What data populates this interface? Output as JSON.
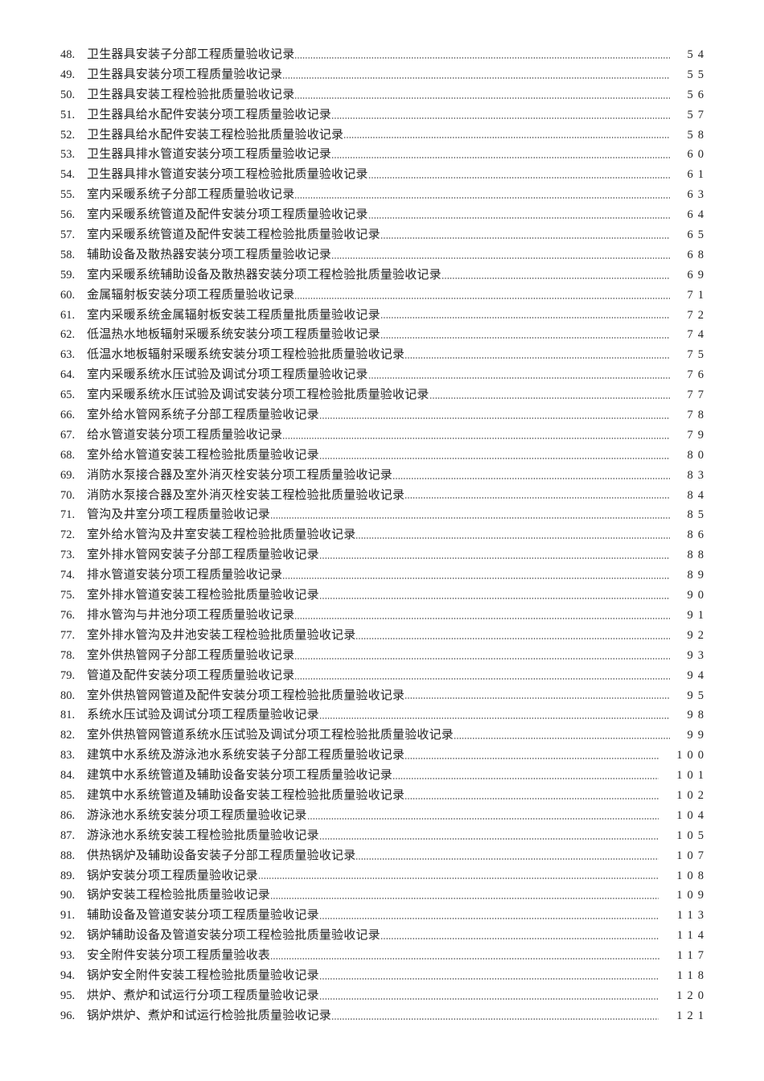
{
  "toc": {
    "entries": [
      {
        "num": "48.",
        "title": "卫生器具安装子分部工程质量验收记录",
        "page": "54"
      },
      {
        "num": "49.",
        "title": "卫生器具安装分项工程质量验收记录",
        "page": "55"
      },
      {
        "num": "50.",
        "title": "卫生器具安装工程检验批质量验收记录",
        "page": "56"
      },
      {
        "num": "51.",
        "title": "卫生器具给水配件安装分项工程质量验收记录",
        "page": "57"
      },
      {
        "num": "52.",
        "title": "卫生器具给水配件安装工程检验批质量验收记录",
        "page": "58"
      },
      {
        "num": "53.",
        "title": "卫生器具排水管道安装分项工程质量验收记录",
        "page": "60"
      },
      {
        "num": "54.",
        "title": "卫生器具排水管道安装分项工程检验批质量验收记录",
        "page": "61"
      },
      {
        "num": "55.",
        "title": "室内采暖系统子分部工程质量验收记录",
        "page": "63"
      },
      {
        "num": "56.",
        "title": "室内采暖系统管道及配件安装分项工程质量验收记录",
        "page": "64"
      },
      {
        "num": "57.",
        "title": "室内采暖系统管道及配件安装工程检验批质量验收记录",
        "page": "65"
      },
      {
        "num": "58.",
        "title": "辅助设备及散热器安装分项工程质量验收记录",
        "page": "68"
      },
      {
        "num": "59.",
        "title": "室内采暖系统辅助设备及散热器安装分项工程检验批质量验收记录",
        "page": "69"
      },
      {
        "num": "60.",
        "title": "金属辐射板安装分项工程质量验收记录",
        "page": "71"
      },
      {
        "num": "61.",
        "title": "室内采暖系统金属辐射板安装工程质量批质量验收记录",
        "page": "72"
      },
      {
        "num": "62.",
        "title": "低温热水地板辐射采暖系统安装分项工程质量验收记录",
        "page": "74"
      },
      {
        "num": "63.",
        "title": "低温水地板辐射采暖系统安装分项工程检验批质量验收记录",
        "page": "75"
      },
      {
        "num": "64.",
        "title": "室内采暖系统水压试验及调试分项工程质量验收记录",
        "page": "76"
      },
      {
        "num": "65.",
        "title": "室内采暖系统水压试验及调试安装分项工程检验批质量验收记录",
        "page": "77"
      },
      {
        "num": "66.",
        "title": "室外给水管网系统子分部工程质量验收记录",
        "page": "78"
      },
      {
        "num": "67.",
        "title": "给水管道安装分项工程质量验收记录",
        "page": "79"
      },
      {
        "num": "68.",
        "title": "室外给水管道安装工程检验批质量验收记录",
        "page": "80"
      },
      {
        "num": "69.",
        "title": "消防水泵接合器及室外消灭栓安装分项工程质量验收记录",
        "page": "83"
      },
      {
        "num": "70.",
        "title": "消防水泵接合器及室外消灭栓安装工程检验批质量验收记录",
        "page": "84"
      },
      {
        "num": "71.",
        "title": "管沟及井室分项工程质量验收记录",
        "page": "85"
      },
      {
        "num": "72.",
        "title": "室外给水管沟及井室安装工程检验批质量验收记录",
        "page": "86"
      },
      {
        "num": "73.",
        "title": "室外排水管网安装子分部工程质量验收记录",
        "page": "88"
      },
      {
        "num": "74.",
        "title": "排水管道安装分项工程质量验收记录",
        "page": "89"
      },
      {
        "num": "75.",
        "title": "室外排水管道安装工程检验批质量验收记录",
        "page": "90"
      },
      {
        "num": "76.",
        "title": "排水管沟与井池分项工程质量验收记录",
        "page": "91"
      },
      {
        "num": "77.",
        "title": "室外排水管沟及井池安装工程检验批质量验收记录",
        "page": "92"
      },
      {
        "num": "78.",
        "title": "室外供热管网子分部工程质量验收记录",
        "page": "93"
      },
      {
        "num": "79.",
        "title": "管道及配件安装分项工程质量验收记录",
        "page": "94"
      },
      {
        "num": "80.",
        "title": "室外供热管网管道及配件安装分项工程检验批质量验收记录",
        "page": "95"
      },
      {
        "num": "81.",
        "title": "系统水压试验及调试分项工程质量验收记录",
        "page": "98"
      },
      {
        "num": "82.",
        "title": "室外供热管网管道系统水压试验及调试分项工程检验批质量验收记录",
        "page": "99"
      },
      {
        "num": "83.",
        "title": "建筑中水系统及游泳池水系统安装子分部工程质量验收记录",
        "page": "100"
      },
      {
        "num": "84.",
        "title": "建筑中水系统管道及辅助设备安装分项工程质量验收记录",
        "page": "101"
      },
      {
        "num": "85.",
        "title": "建筑中水系统管道及辅助设备安装工程检验批质量验收记录",
        "page": "102"
      },
      {
        "num": "86.",
        "title": "游泳池水系统安装分项工程质量验收记录",
        "page": "104"
      },
      {
        "num": "87.",
        "title": "游泳池水系统安装工程检验批质量验收记录",
        "page": "105"
      },
      {
        "num": "88.",
        "title": "供热锅炉及辅助设备安装子分部工程质量验收记录",
        "page": "107"
      },
      {
        "num": "89.",
        "title": "锅炉安装分项工程质量验收记录",
        "page": "108"
      },
      {
        "num": "90.",
        "title": "锅炉安装工程检验批质量验收记录",
        "page": "109"
      },
      {
        "num": "91.",
        "title": "辅助设备及管道安装分项工程质量验收记录",
        "page": "113"
      },
      {
        "num": "92.",
        "title": "锅炉辅助设备及管道安装分项工程检验批质量验收记录",
        "page": "114"
      },
      {
        "num": "93.",
        "title": "安全附件安装分项工程质量验收表",
        "page": "117"
      },
      {
        "num": "94.",
        "title": "锅炉安全附件安装工程检验批质量验收记录",
        "page": "118"
      },
      {
        "num": "95.",
        "title": "烘炉、煮炉和试运行分项工程质量验收记录",
        "page": "120"
      },
      {
        "num": "96.",
        "title": "锅炉烘炉、煮炉和试运行检验批质量验收记录",
        "page": "121"
      }
    ]
  }
}
